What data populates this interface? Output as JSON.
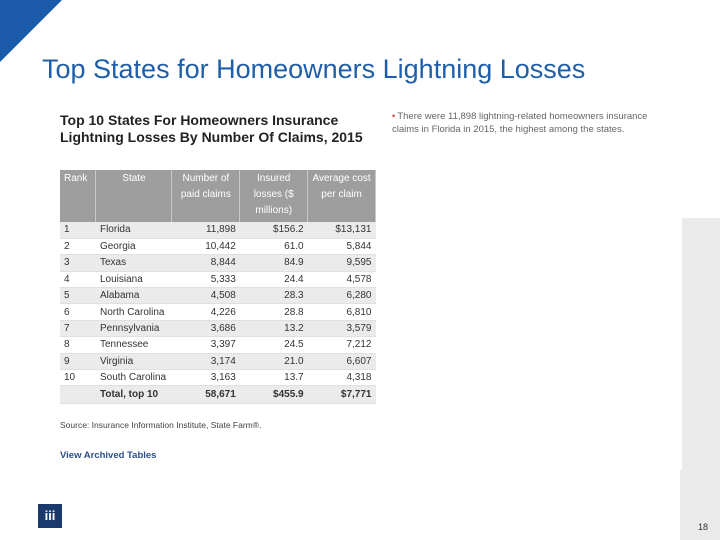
{
  "slide": {
    "title": "Top States for Homeowners Lightning Losses",
    "page_number": "18",
    "logo_text": "iii"
  },
  "table": {
    "title": "Top 10 States For Homeowners Insurance Lightning Losses By Number Of Claims, 2015",
    "headers": [
      "Rank",
      "State",
      "Number of paid claims",
      "Insured losses ($ millions)",
      "Average cost per claim"
    ],
    "rows": [
      [
        "1",
        "Florida",
        "11,898",
        "$156.2",
        "$13,131"
      ],
      [
        "2",
        "Georgia",
        "10,442",
        "61.0",
        "5,844"
      ],
      [
        "3",
        "Texas",
        "8,844",
        "84.9",
        "9,595"
      ],
      [
        "4",
        "Louisiana",
        "5,333",
        "24.4",
        "4,578"
      ],
      [
        "5",
        "Alabama",
        "4,508",
        "28.3",
        "6,280"
      ],
      [
        "6",
        "North Carolina",
        "4,226",
        "28.8",
        "6,810"
      ],
      [
        "7",
        "Pennsylvania",
        "3,686",
        "13.2",
        "3,579"
      ],
      [
        "8",
        "Tennessee",
        "3,397",
        "24.5",
        "7,212"
      ],
      [
        "9",
        "Virginia",
        "3,174",
        "21.0",
        "6,607"
      ],
      [
        "10",
        "South Carolina",
        "3,163",
        "13.7",
        "4,318"
      ]
    ],
    "total": [
      "",
      "Total, top 10",
      "58,671",
      "$455.9",
      "$7,771"
    ],
    "source": "Source: Insurance Information Institute, State Farm®.",
    "archive_link": "View Archived Tables"
  },
  "bullet": {
    "text": "There were 11,898 lightning-related homeowners insurance claims in Florida in 2015, the highest among the states."
  },
  "colors": {
    "accent": "#1f5ea8",
    "header_bg": "#9e9e9e",
    "bullet_dot": "#d0433c"
  }
}
